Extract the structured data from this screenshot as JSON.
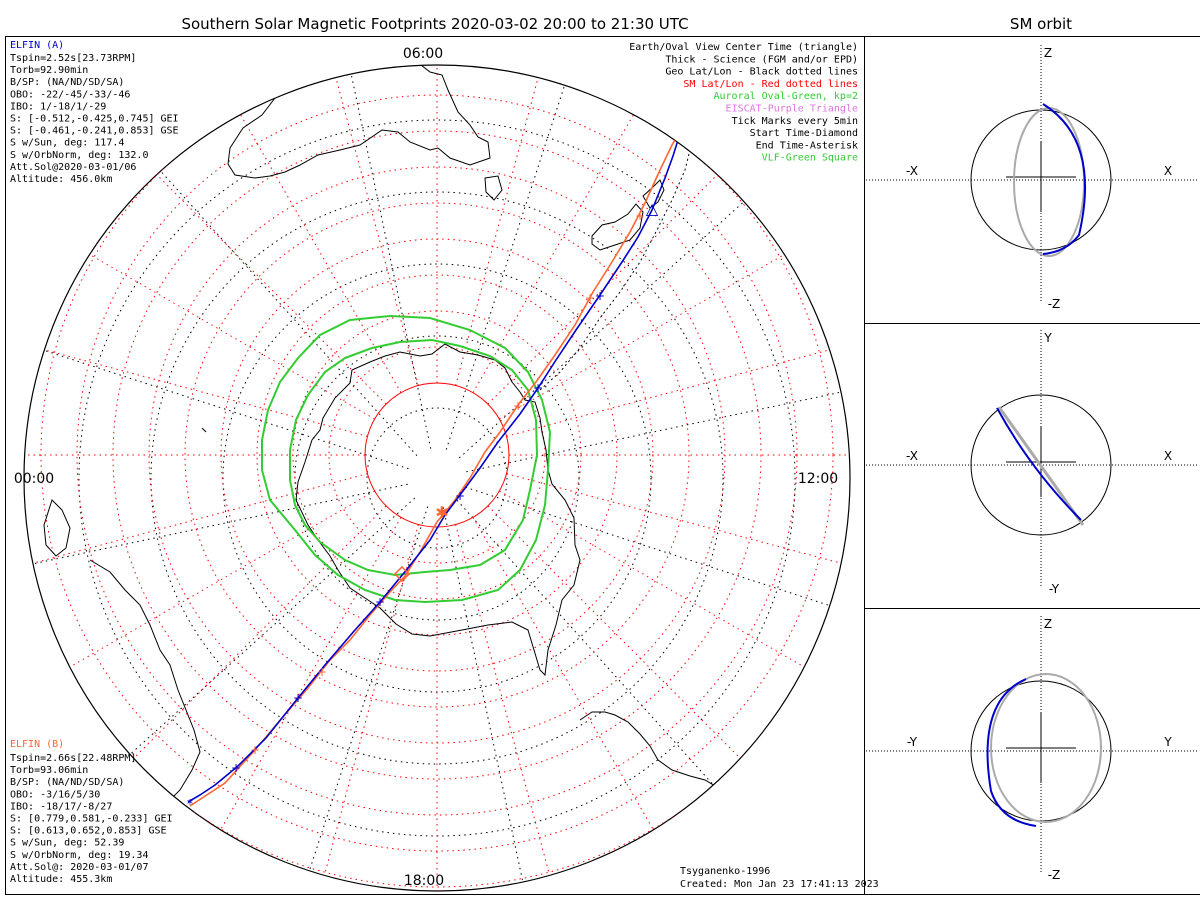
{
  "title": "Southern Solar Magnetic Footprints 2020-03-02 20:00 to 21:30 UTC",
  "side_title": "SM orbit",
  "map": {
    "time_labels": {
      "top": "06:00",
      "left": "00:00",
      "right": "12:00",
      "bottom": "18:00"
    },
    "credit": "Tsyganenko-1996",
    "created": "Created: Mon Jan 23 17:41:13 2023"
  },
  "legend": [
    {
      "text": "Earth/Oval View Center Time (triangle)",
      "color": "#000000"
    },
    {
      "text": "Thick - Science (FGM and/or EPD)",
      "color": "#000000"
    },
    {
      "text": "Geo Lat/Lon - Black dotted lines",
      "color": "#000000"
    },
    {
      "text": "SM Lat/Lon - Red dotted lines",
      "color": "#ff0000"
    },
    {
      "text": "Auroral Oval-Green, kp=2",
      "color": "#33cc33"
    },
    {
      "text": "EISCAT-Purple Triangle",
      "color": "#dd77dd"
    },
    {
      "text": "Tick Marks every 5min",
      "color": "#000000"
    },
    {
      "text": "Start Time-Diamond",
      "color": "#000000"
    },
    {
      "text": "End Time-Asterisk",
      "color": "#000000"
    },
    {
      "text": "VLF-Green Square",
      "color": "#33cc33"
    }
  ],
  "elfin_a": {
    "name": "ELFIN (A)",
    "color": "#0000cc",
    "lines": [
      "Tspin=2.52s[23.73RPM]",
      "Torb=92.90min",
      "B/SP: (NA/ND/SD/SA)",
      "OBO: -22/-45/-33/-46",
      "IBO: 1/-18/1/-29",
      "S: [-0.512,-0.425,0.745] GEI",
      "S: [-0.461,-0.241,0.853] GSE",
      "S w/Sun, deg: 117.4",
      "S w/OrbNorm, deg: 132.0",
      "Att.Sol@2020-03-01/06",
      "Altitude: 456.0km"
    ]
  },
  "elfin_b": {
    "name": "ELFIN (B)",
    "color": "#ff6633",
    "lines": [
      "Tspin=2.66s[22.48RPM]",
      "Torb=93.06min",
      "B/SP: (NA/ND/SD/SA)",
      "OBO: -3/16/5/30",
      "IBO: -18/17/-8/27",
      "S: [0.779,0.581,-0.233] GEI",
      "S: [0.613,0.652,0.853] GSE",
      "S w/Sun, deg: 52.39",
      "S w/OrbNorm, deg: 19.34",
      "Att.Sol@: 2020-03-01/07",
      "Altitude: 455.3km"
    ]
  },
  "panels": [
    {
      "name": "xz",
      "left": "-X",
      "right": "X",
      "top": "Z",
      "bottom": "-Z"
    },
    {
      "name": "xy",
      "left": "-X",
      "right": "X",
      "top": "Y",
      "bottom": "-Y"
    },
    {
      "name": "yz",
      "left": "-Y",
      "right": "Y",
      "top": "Z",
      "bottom": "-Z"
    }
  ],
  "colors": {
    "elfin_a": "#0000cc",
    "elfin_b": "#ff6633",
    "oval": "#33cc33",
    "sm_grid": "#ff0000",
    "geo_grid": "#000000"
  }
}
